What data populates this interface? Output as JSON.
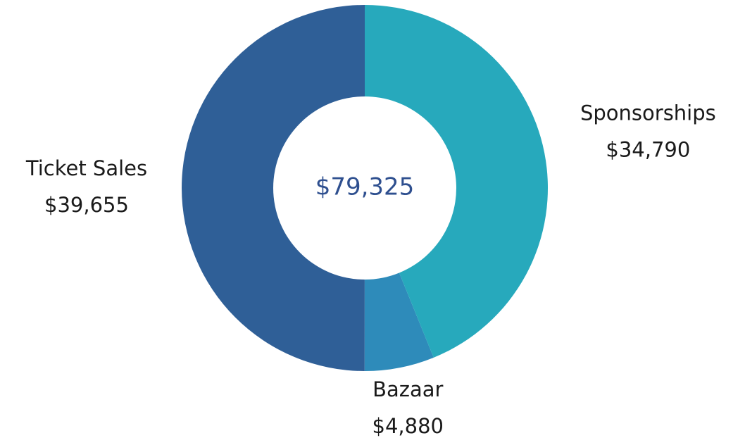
{
  "chart_data": {
    "type": "donut",
    "categories": [
      "Sponsorships",
      "Bazaar",
      "Ticket Sales"
    ],
    "values": [
      34790,
      4880,
      39655
    ],
    "value_labels": [
      "$34,790",
      "$4,880",
      "$39,655"
    ],
    "colors": [
      "#27a9bc",
      "#2e8bba",
      "#2f5f97"
    ],
    "center_text": "$79,325"
  }
}
